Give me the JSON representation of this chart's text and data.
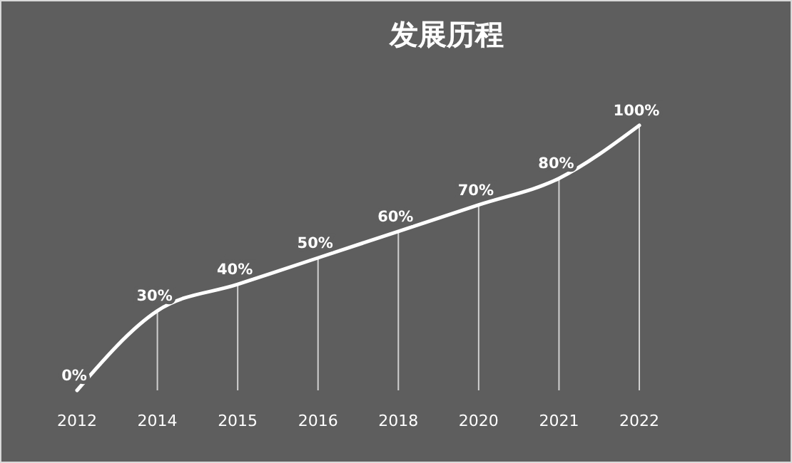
{
  "chart_data": {
    "type": "line",
    "title": "发展历程",
    "categories": [
      "2012",
      "2014",
      "2015",
      "2016",
      "2018",
      "2020",
      "2021",
      "2022"
    ],
    "series": [
      {
        "color": "#ffffff",
        "values": [
          0,
          30,
          40,
          50,
          60,
          70,
          80,
          100
        ],
        "value_labels": [
          "0%",
          "30%",
          "40%",
          "50%",
          "60%",
          "70%",
          "80%",
          "100%"
        ]
      },
      {
        "type": "bar",
        "color": "#d0d0d0",
        "values": [
          0,
          30,
          40,
          50,
          60,
          70,
          80,
          100
        ]
      }
    ],
    "line_style": "solid"
  }
}
